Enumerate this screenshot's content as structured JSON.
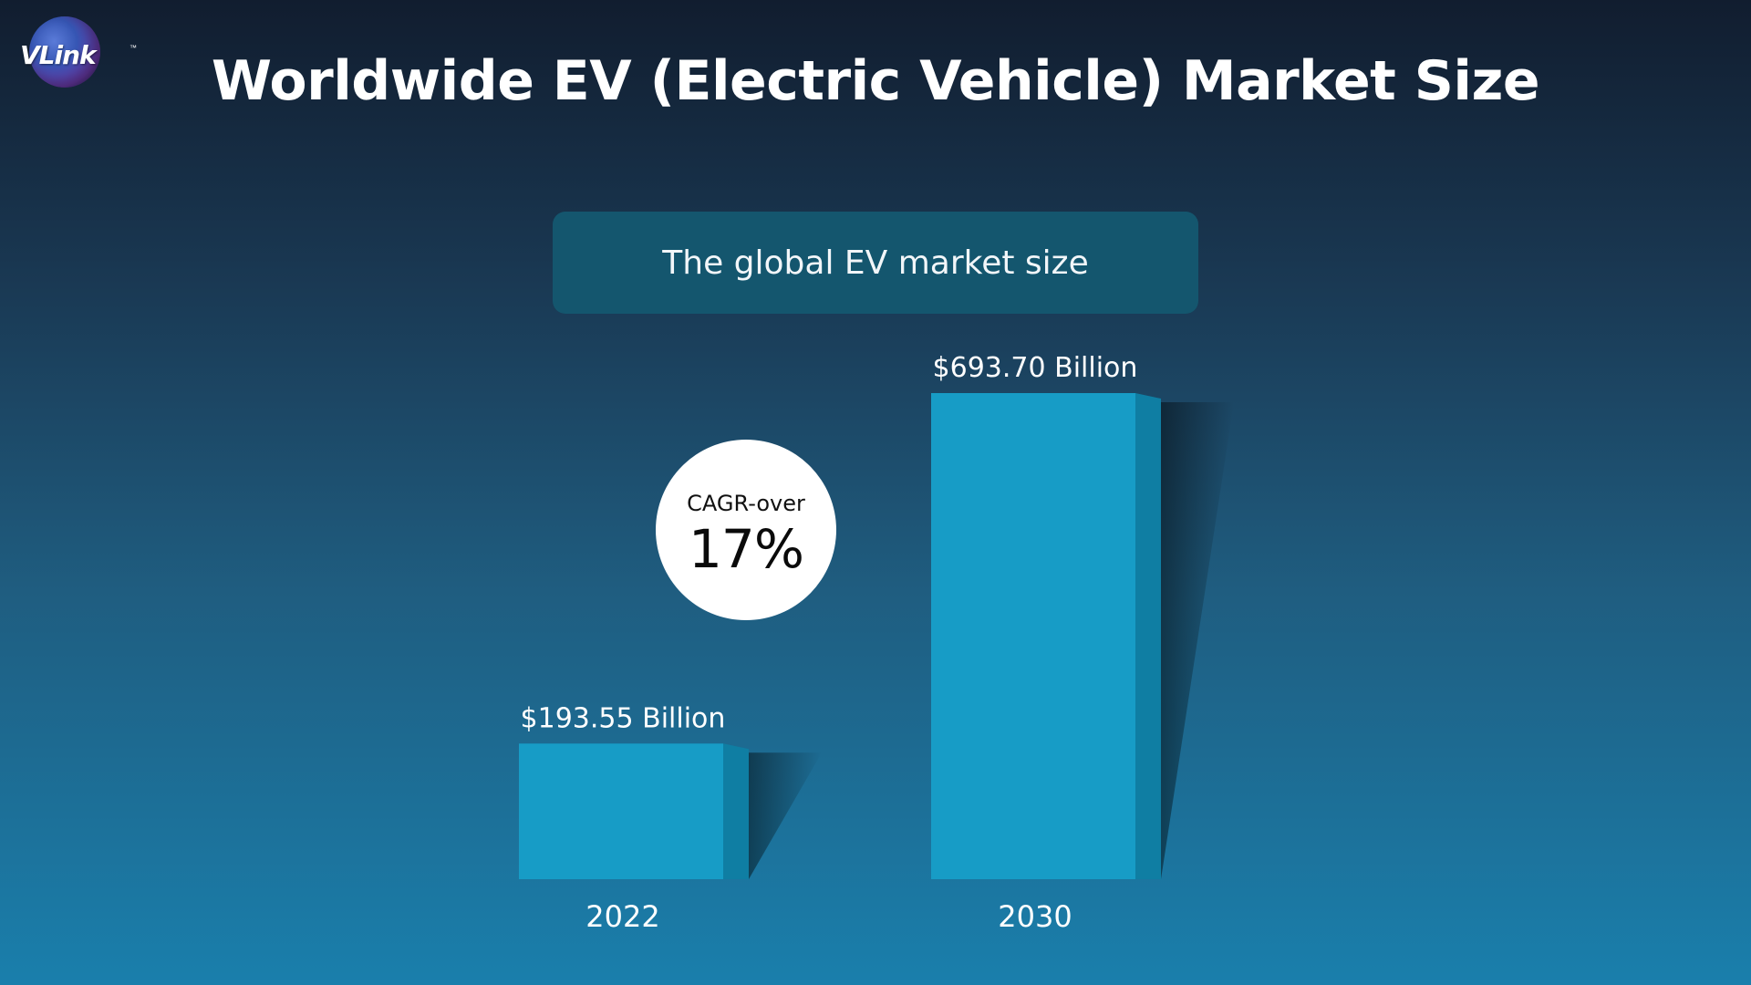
{
  "header": {
    "logo_text": "VLink",
    "logo_tm": "™",
    "title": "Worldwide EV (Electric Vehicle) Market Size"
  },
  "callout": {
    "label": "CAGR-over",
    "value": "17%"
  },
  "colors": {
    "bar_front": "#179cc6",
    "bar_side": "#0f7ea3",
    "subtitle_box": "#14566e"
  },
  "chart_data": {
    "type": "bar",
    "title": "The global EV market size",
    "xlabel": "",
    "ylabel": "",
    "categories": [
      "2022",
      "2030"
    ],
    "values": [
      193.55,
      693.7
    ],
    "value_labels": [
      "$193.55 Billion",
      "$693.70 Billion"
    ],
    "ylim": [
      0,
      693.7
    ],
    "grid": false
  }
}
